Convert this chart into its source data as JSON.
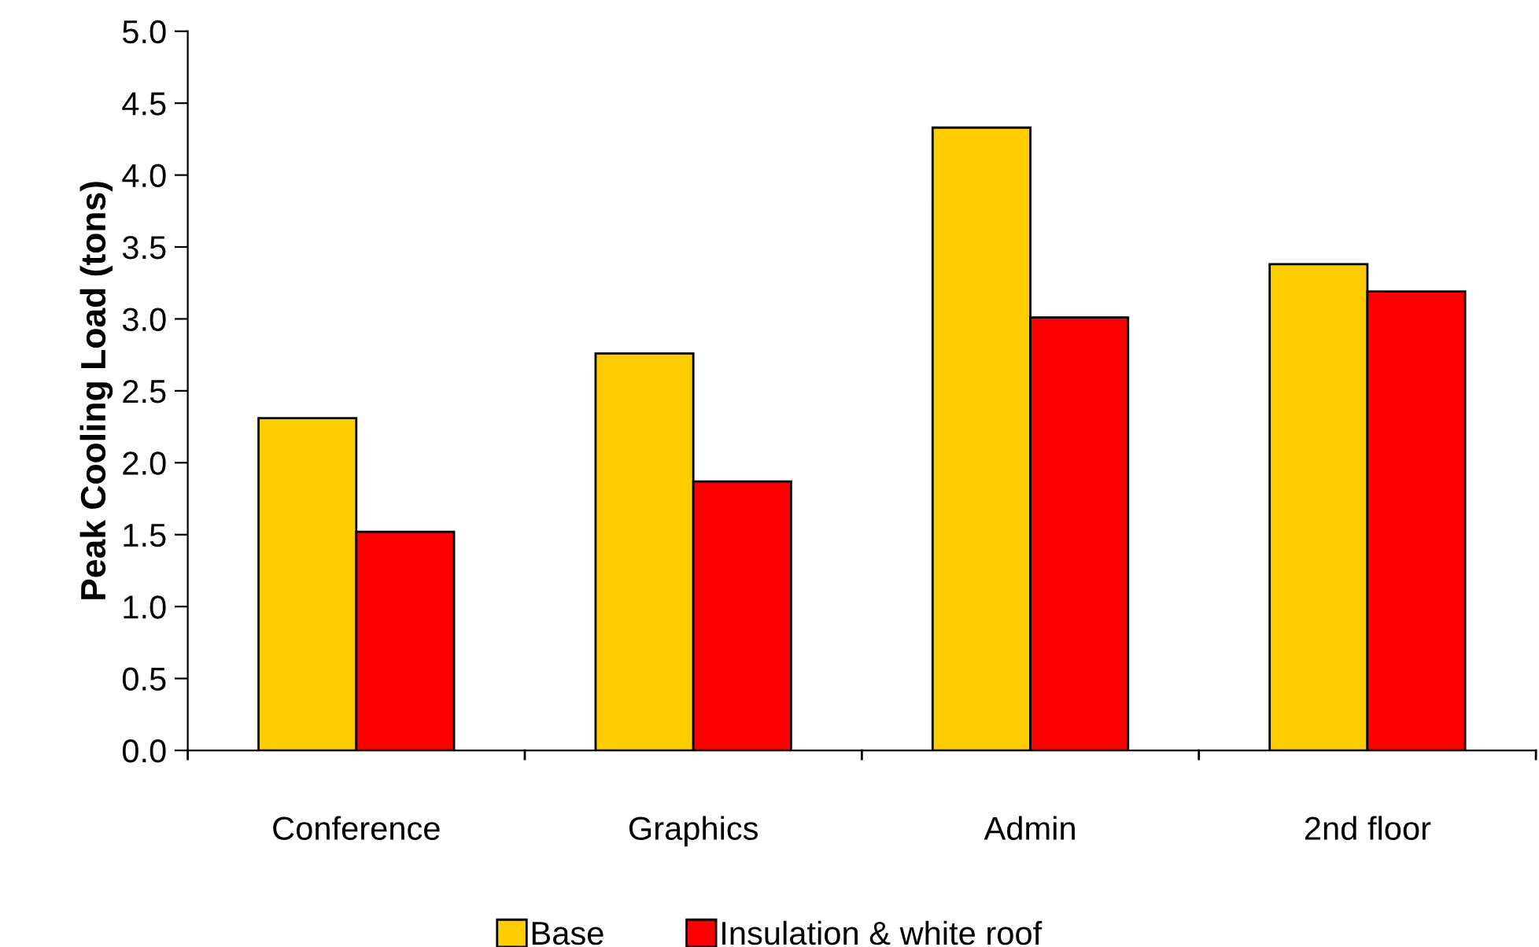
{
  "chart_data": {
    "type": "bar",
    "ylabel": "Peak Cooling Load (tons)",
    "categories": [
      "Conference",
      "Graphics",
      "Admin",
      "2nd floor"
    ],
    "series": [
      {
        "name": "Base",
        "color": "#ffcc00",
        "values": [
          2.31,
          2.76,
          4.33,
          3.38
        ]
      },
      {
        "name": "Insulation & white roof",
        "color": "#ff0000",
        "values": [
          1.52,
          1.87,
          3.01,
          3.19
        ]
      }
    ],
    "ylim": [
      0,
      5
    ],
    "yticks": [
      {
        "value": 0,
        "label": "0.0"
      },
      {
        "value": 0.5,
        "label": "0.5"
      },
      {
        "value": 1,
        "label": "1.0"
      },
      {
        "value": 1.5,
        "label": "1.5"
      },
      {
        "value": 2,
        "label": "2.0"
      },
      {
        "value": 2.5,
        "label": "2.5"
      },
      {
        "value": 3,
        "label": "3.0"
      },
      {
        "value": 3.5,
        "label": "3.5"
      },
      {
        "value": 4,
        "label": "4.0"
      },
      {
        "value": 4.5,
        "label": "4.5"
      },
      {
        "value": 5,
        "label": "5.0"
      }
    ],
    "grid": false,
    "legend": "bottom"
  }
}
